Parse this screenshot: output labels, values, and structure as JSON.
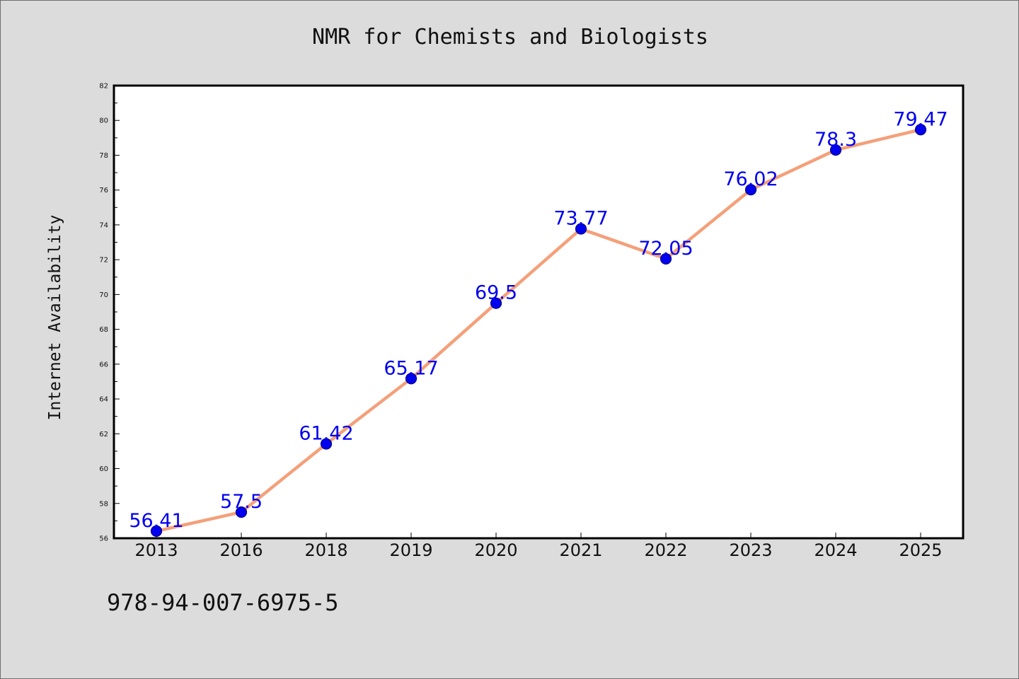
{
  "chart_data": {
    "type": "line",
    "title": "NMR for Chemists and Biologists",
    "xlabel": "",
    "ylabel": "Internet Availability",
    "categories": [
      "2013",
      "2016",
      "2018",
      "2019",
      "2020",
      "2021",
      "2022",
      "2023",
      "2024",
      "2025"
    ],
    "series": [
      {
        "values": [
          56.41,
          57.5,
          61.42,
          65.17,
          69.5,
          73.77,
          72.05,
          76.02,
          78.3,
          79.47
        ],
        "data_labels": [
          "56.41",
          "57.5",
          "61.42",
          "65.17",
          "69.5",
          "73.77",
          "72.05",
          "76.02",
          "78.3",
          "79.47"
        ]
      }
    ],
    "ylim": [
      56,
      82
    ],
    "yticks": [
      "56",
      "58",
      "60",
      "62",
      "64",
      "66",
      "68",
      "70",
      "72",
      "74",
      "76",
      "78",
      "80",
      "82"
    ],
    "grid": false,
    "legend": "none",
    "colors": {
      "line": "#f4a07a",
      "marker": "#0000ee",
      "marker_edge": "#00008b",
      "label": "#0000ee",
      "background": "#dcdcdc",
      "plot_area": "#ffffff"
    }
  },
  "footer": {
    "code": "978-94-007-6975-5"
  }
}
